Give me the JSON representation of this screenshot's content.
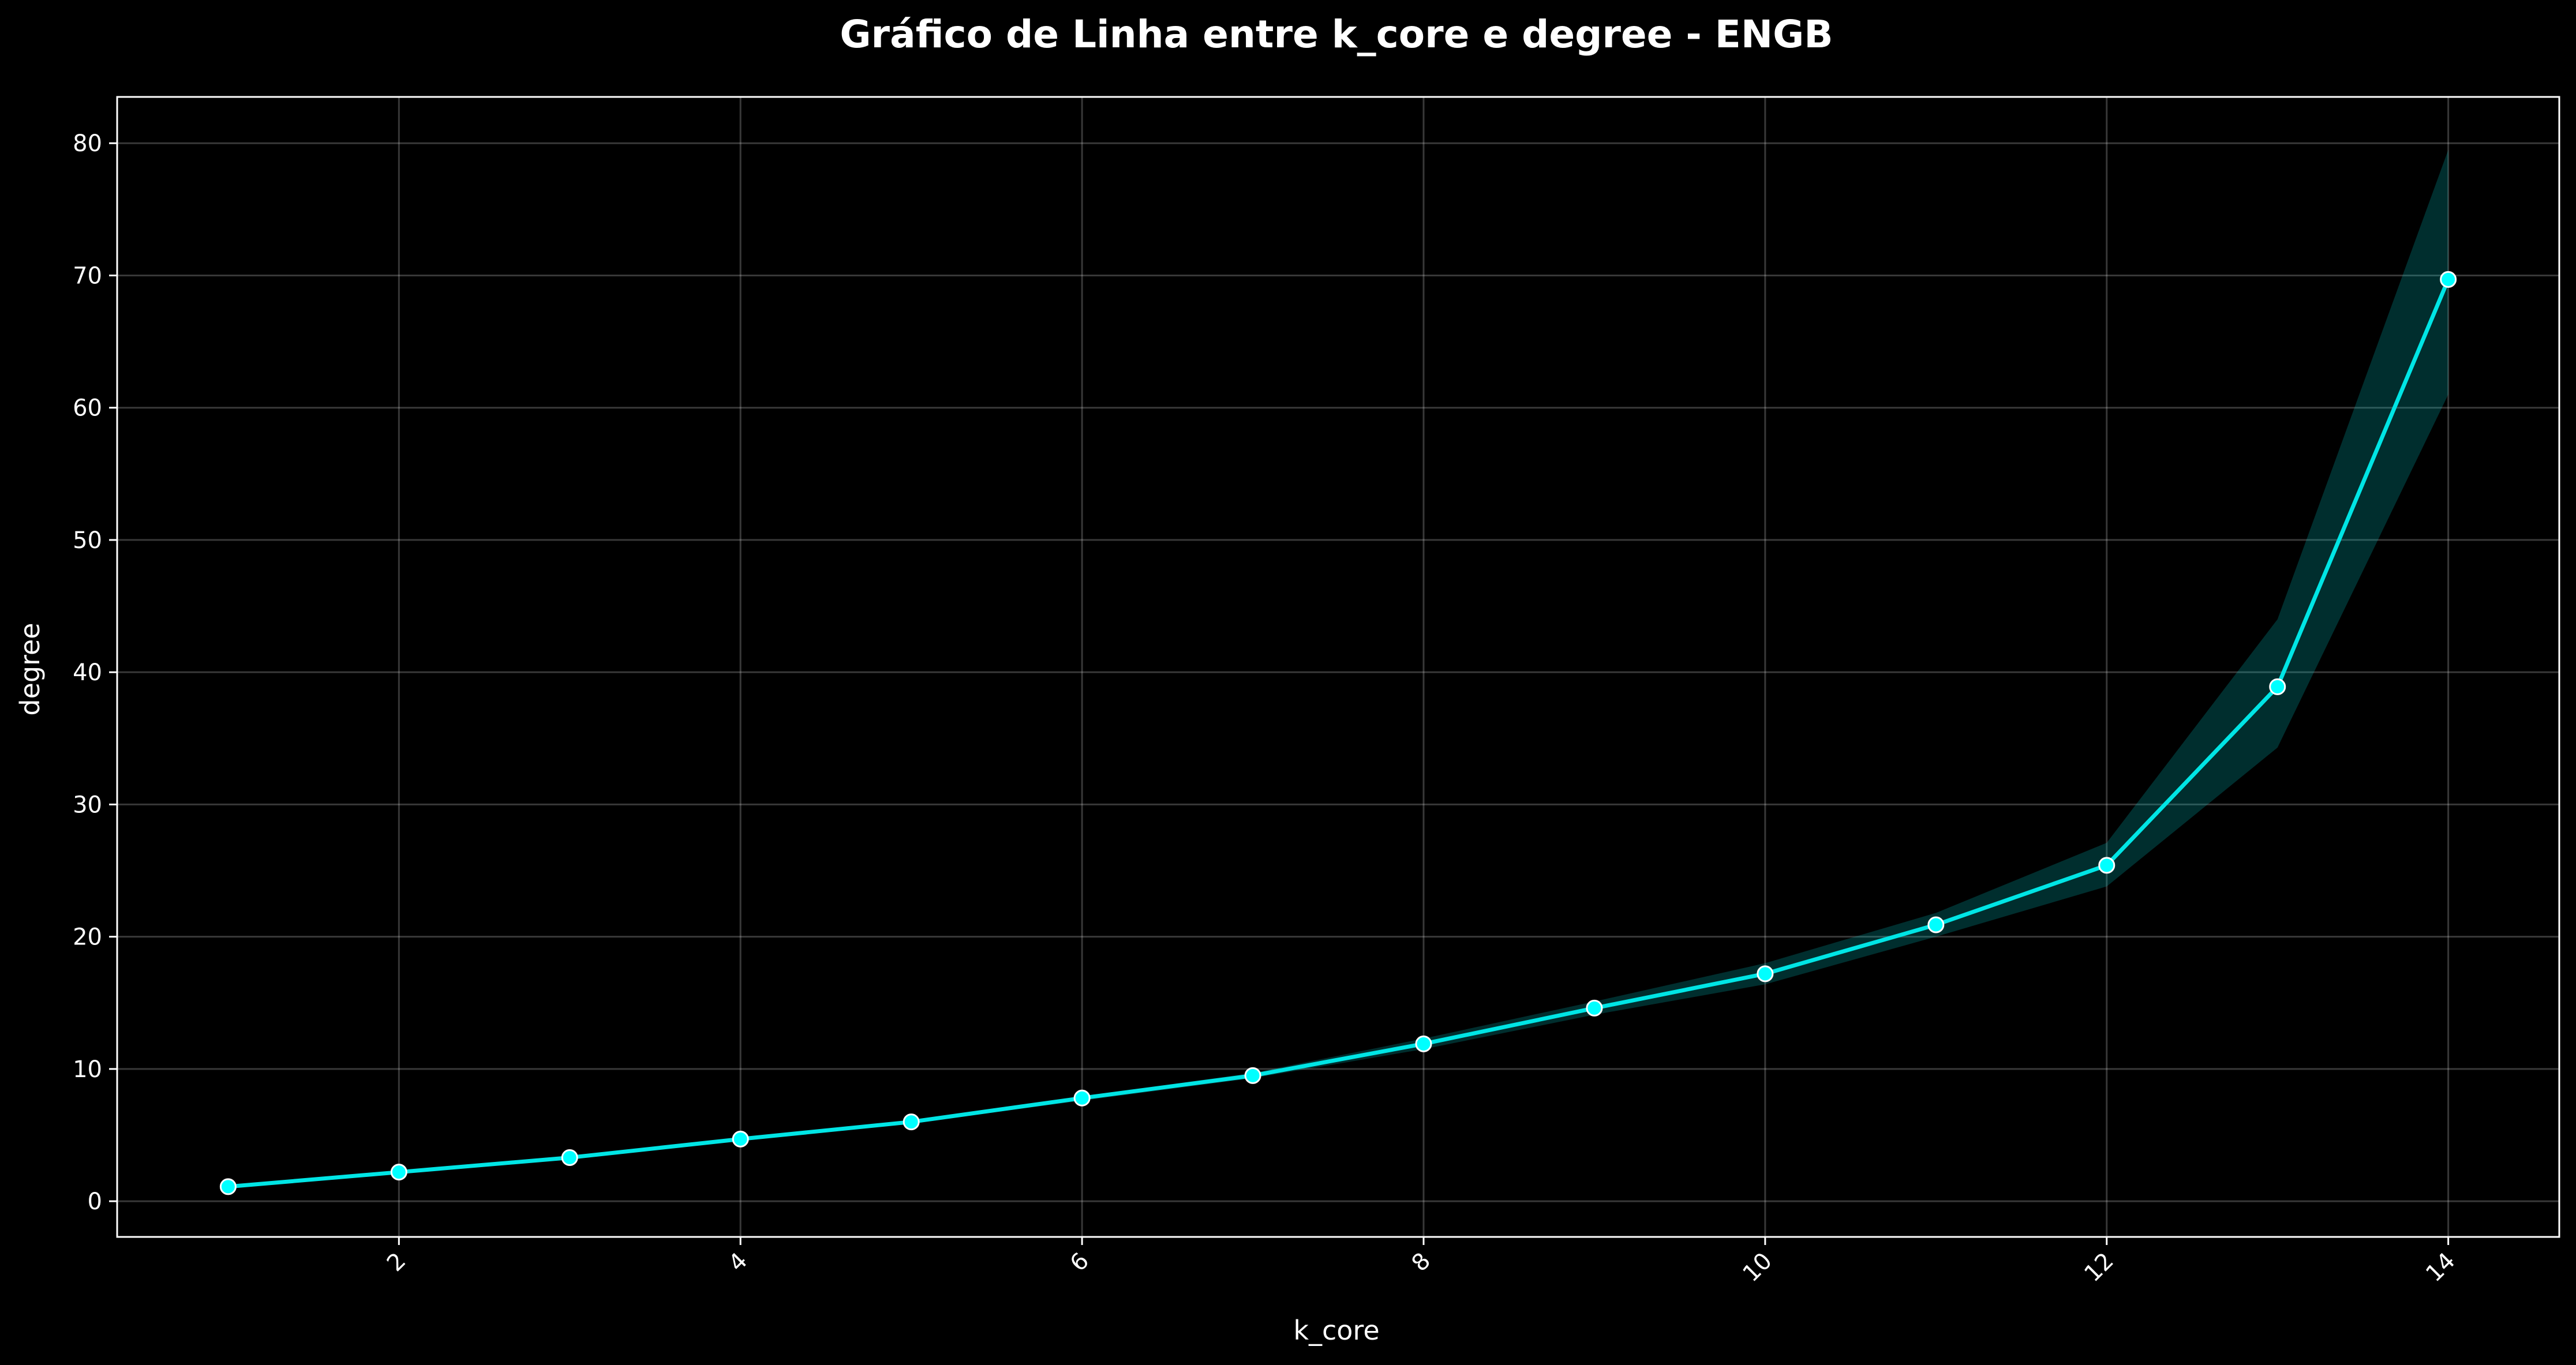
{
  "chart_data": {
    "type": "line",
    "title": "Gráfico de Linha entre k_core e degree - ENGB",
    "xlabel": "k_core",
    "ylabel": "degree",
    "xlim": [
      0.35,
      14.65
    ],
    "ylim": [
      -2.7,
      83.5
    ],
    "x_ticks": [
      2,
      4,
      6,
      8,
      10,
      12,
      14
    ],
    "y_ticks": [
      0,
      10,
      20,
      30,
      40,
      50,
      60,
      70,
      80
    ],
    "grid": true,
    "colors": {
      "background": "#000000",
      "line": "#00e5e5",
      "marker_fill": "#00ffff",
      "marker_edge": "#ffffff",
      "band": "#00e5e5"
    },
    "series": [
      {
        "x": [
          1,
          2,
          3,
          4,
          5,
          6,
          7,
          8,
          9,
          10,
          11,
          12,
          13,
          14
        ],
        "y": [
          1.1,
          2.2,
          3.3,
          4.7,
          6.0,
          7.8,
          9.5,
          11.9,
          14.6,
          17.2,
          20.9,
          25.4,
          38.9,
          69.7
        ],
        "ci_lower": [
          1.0,
          2.1,
          3.2,
          4.6,
          5.9,
          7.6,
          9.3,
          11.5,
          14.1,
          16.4,
          20.0,
          23.8,
          34.3,
          61.0
        ],
        "ci_upper": [
          1.2,
          2.3,
          3.4,
          4.8,
          6.1,
          7.9,
          9.7,
          12.3,
          15.1,
          18.0,
          21.8,
          27.1,
          44.0,
          79.5
        ]
      }
    ]
  }
}
